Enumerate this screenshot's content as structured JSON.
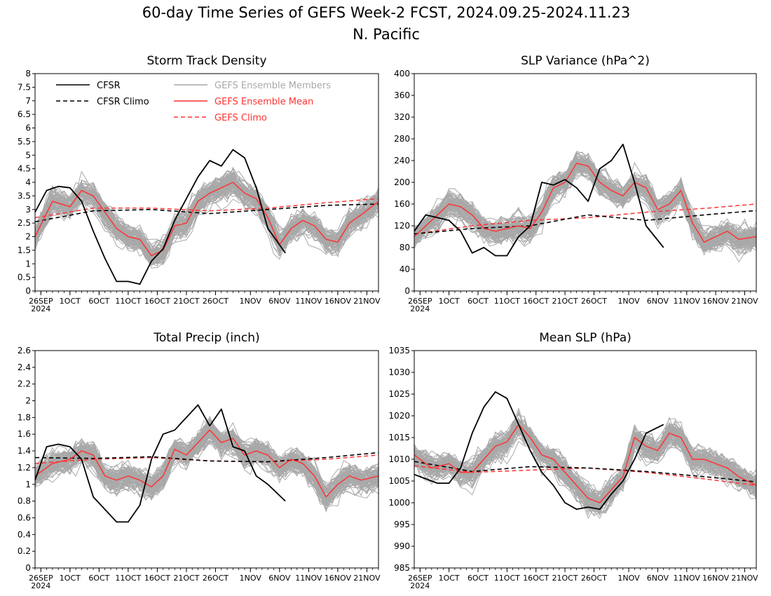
{
  "figure": {
    "title_line1": "60-day Time Series of GEFS Week-2 FCST, 2024.09.25-2024.11.23",
    "title_line2": "N. Pacific"
  },
  "legend": {
    "cfsr": "CFSR",
    "cfsr_climo": "CFSR Climo",
    "members": "GEFS Ensemble Members",
    "ens_mean": "GEFS Ensemble Mean",
    "gefs_climo": "GEFS Climo"
  },
  "colors": {
    "cfsr": "#000000",
    "ens_mean": "#ff3333",
    "members": "#a9a9a9",
    "gefs_climo": "#ff3333"
  },
  "chart_data": [
    {
      "type": "line",
      "title": "Storm Track Density",
      "x": {
        "start": "2024-09-25",
        "end": "2024-11-23",
        "ticks": [
          "26SEP",
          "1OCT",
          "6OCT",
          "11OCT",
          "16OCT",
          "21OCT",
          "26OCT",
          "1NOV",
          "6NOV",
          "11NOV",
          "16NOV",
          "21NOV"
        ],
        "year_label": "2024"
      },
      "ylim": [
        0,
        8
      ],
      "yticks": [
        "0",
        "0.5",
        "1",
        "1.5",
        "2",
        "2.5",
        "3",
        "3.5",
        "4",
        "4.5",
        "5",
        "5.5",
        "6",
        "6.5",
        "7",
        "7.5",
        "8"
      ],
      "ens_member_count": 80,
      "series": [
        {
          "name": "CFSR",
          "x": [
            "2024-09-25",
            "2024-09-27",
            "2024-09-29",
            "2024-10-01",
            "2024-10-03",
            "2024-10-05",
            "2024-10-07",
            "2024-10-09",
            "2024-10-11",
            "2024-10-13",
            "2024-10-15",
            "2024-10-17",
            "2024-10-19",
            "2024-10-21",
            "2024-10-23",
            "2024-10-25",
            "2024-10-27",
            "2024-10-29",
            "2024-10-31",
            "2024-11-02",
            "2024-11-04",
            "2024-11-07"
          ],
          "values": [
            2.9,
            3.7,
            3.85,
            3.8,
            3.3,
            2.2,
            1.2,
            0.35,
            0.35,
            0.25,
            1.1,
            1.55,
            2.6,
            3.4,
            4.2,
            4.8,
            4.6,
            5.2,
            4.9,
            3.8,
            2.3,
            1.4
          ]
        },
        {
          "name": "CFSR Climo",
          "x": [
            "2024-09-25",
            "2024-10-05",
            "2024-10-15",
            "2024-10-25",
            "2024-11-04",
            "2024-11-14",
            "2024-11-23"
          ],
          "values": [
            2.55,
            2.95,
            3.0,
            2.85,
            3.0,
            3.15,
            3.2
          ]
        },
        {
          "name": "GEFS Ensemble Mean",
          "x": [
            "2024-09-25",
            "2024-09-28",
            "2024-10-01",
            "2024-10-03",
            "2024-10-05",
            "2024-10-07",
            "2024-10-09",
            "2024-10-11",
            "2024-10-13",
            "2024-10-15",
            "2024-10-17",
            "2024-10-19",
            "2024-10-21",
            "2024-10-23",
            "2024-10-25",
            "2024-10-27",
            "2024-10-29",
            "2024-10-31",
            "2024-11-02",
            "2024-11-04",
            "2024-11-06",
            "2024-11-08",
            "2024-11-10",
            "2024-11-12",
            "2024-11-14",
            "2024-11-16",
            "2024-11-18",
            "2024-11-20",
            "2024-11-23"
          ],
          "values": [
            2.0,
            3.3,
            3.1,
            3.7,
            3.5,
            2.9,
            2.3,
            2.0,
            1.9,
            1.3,
            1.5,
            2.4,
            2.5,
            3.3,
            3.6,
            3.8,
            4.0,
            3.6,
            3.4,
            2.7,
            1.7,
            2.3,
            2.6,
            2.4,
            1.9,
            1.8,
            2.5,
            2.8,
            3.3
          ]
        },
        {
          "name": "GEFS Climo",
          "x": [
            "2024-09-25",
            "2024-10-05",
            "2024-10-15",
            "2024-10-25",
            "2024-11-04",
            "2024-11-14",
            "2024-11-23"
          ],
          "values": [
            2.7,
            3.05,
            3.05,
            2.95,
            3.05,
            3.25,
            3.4
          ]
        }
      ]
    },
    {
      "type": "line",
      "title": "SLP Variance (hPa^2)",
      "x": {
        "start": "2024-09-25",
        "end": "2024-11-23",
        "ticks": [
          "26SEP",
          "1OCT",
          "6OCT",
          "11OCT",
          "16OCT",
          "21OCT",
          "26OCT",
          "1NOV",
          "6NOV",
          "11NOV",
          "16NOV",
          "21NOV"
        ],
        "year_label": "2024"
      },
      "ylim": [
        0,
        400
      ],
      "yticks": [
        "0",
        "40",
        "80",
        "120",
        "160",
        "200",
        "240",
        "280",
        "320",
        "360",
        "400"
      ],
      "ens_member_count": 80,
      "series": [
        {
          "name": "CFSR",
          "x": [
            "2024-09-25",
            "2024-09-27",
            "2024-09-29",
            "2024-10-01",
            "2024-10-03",
            "2024-10-05",
            "2024-10-07",
            "2024-10-09",
            "2024-10-11",
            "2024-10-13",
            "2024-10-15",
            "2024-10-17",
            "2024-10-19",
            "2024-10-21",
            "2024-10-23",
            "2024-10-25",
            "2024-10-27",
            "2024-10-29",
            "2024-10-31",
            "2024-11-02",
            "2024-11-04",
            "2024-11-07"
          ],
          "values": [
            110,
            140,
            135,
            130,
            110,
            70,
            80,
            65,
            65,
            100,
            120,
            200,
            195,
            205,
            190,
            165,
            225,
            240,
            270,
            200,
            120,
            80
          ]
        },
        {
          "name": "CFSR Climo",
          "x": [
            "2024-09-25",
            "2024-10-05",
            "2024-10-15",
            "2024-10-25",
            "2024-11-04",
            "2024-11-14",
            "2024-11-23"
          ],
          "values": [
            105,
            115,
            120,
            140,
            130,
            140,
            148
          ]
        },
        {
          "name": "GEFS Ensemble Mean",
          "x": [
            "2024-09-25",
            "2024-09-28",
            "2024-10-01",
            "2024-10-03",
            "2024-10-05",
            "2024-10-07",
            "2024-10-09",
            "2024-10-11",
            "2024-10-13",
            "2024-10-15",
            "2024-10-17",
            "2024-10-19",
            "2024-10-21",
            "2024-10-23",
            "2024-10-25",
            "2024-10-27",
            "2024-10-29",
            "2024-10-31",
            "2024-11-02",
            "2024-11-04",
            "2024-11-06",
            "2024-11-08",
            "2024-11-10",
            "2024-11-12",
            "2024-11-14",
            "2024-11-16",
            "2024-11-18",
            "2024-11-20",
            "2024-11-23"
          ],
          "values": [
            100,
            130,
            160,
            155,
            140,
            115,
            110,
            115,
            120,
            115,
            145,
            190,
            200,
            235,
            230,
            200,
            185,
            175,
            200,
            190,
            150,
            160,
            185,
            125,
            90,
            100,
            110,
            95,
            100
          ]
        },
        {
          "name": "GEFS Climo",
          "x": [
            "2024-09-25",
            "2024-10-05",
            "2024-10-15",
            "2024-10-25",
            "2024-11-04",
            "2024-11-14",
            "2024-11-23"
          ],
          "values": [
            105,
            120,
            130,
            135,
            145,
            152,
            160
          ]
        }
      ]
    },
    {
      "type": "line",
      "title": "Total Precip (inch)",
      "x": {
        "start": "2024-09-25",
        "end": "2024-11-23",
        "ticks": [
          "26SEP",
          "1OCT",
          "6OCT",
          "11OCT",
          "16OCT",
          "21OCT",
          "26OCT",
          "1NOV",
          "6NOV",
          "11NOV",
          "16NOV",
          "21NOV"
        ],
        "year_label": "2024"
      },
      "ylim": [
        0,
        2.6
      ],
      "yticks": [
        "0",
        "0.2",
        "0.4",
        "0.6",
        "0.8",
        "1",
        "1.2",
        "1.4",
        "1.6",
        "1.8",
        "2",
        "2.2",
        "2.4",
        "2.6"
      ],
      "ens_member_count": 80,
      "series": [
        {
          "name": "CFSR",
          "x": [
            "2024-09-25",
            "2024-09-27",
            "2024-09-29",
            "2024-10-01",
            "2024-10-03",
            "2024-10-05",
            "2024-10-07",
            "2024-10-09",
            "2024-10-11",
            "2024-10-13",
            "2024-10-15",
            "2024-10-17",
            "2024-10-19",
            "2024-10-21",
            "2024-10-23",
            "2024-10-25",
            "2024-10-27",
            "2024-10-29",
            "2024-10-31",
            "2024-11-02",
            "2024-11-04",
            "2024-11-07"
          ],
          "values": [
            1.05,
            1.45,
            1.48,
            1.45,
            1.3,
            0.85,
            0.7,
            0.55,
            0.55,
            0.75,
            1.3,
            1.6,
            1.65,
            1.8,
            1.95,
            1.7,
            1.9,
            1.45,
            1.4,
            1.1,
            1.0,
            0.8
          ]
        },
        {
          "name": "CFSR Climo",
          "x": [
            "2024-09-25",
            "2024-10-05",
            "2024-10-15",
            "2024-10-25",
            "2024-11-04",
            "2024-11-14",
            "2024-11-23"
          ],
          "values": [
            1.32,
            1.31,
            1.33,
            1.28,
            1.27,
            1.32,
            1.38
          ]
        },
        {
          "name": "GEFS Ensemble Mean",
          "x": [
            "2024-09-25",
            "2024-09-28",
            "2024-10-01",
            "2024-10-03",
            "2024-10-05",
            "2024-10-07",
            "2024-10-09",
            "2024-10-11",
            "2024-10-13",
            "2024-10-15",
            "2024-10-17",
            "2024-10-19",
            "2024-10-21",
            "2024-10-23",
            "2024-10-25",
            "2024-10-27",
            "2024-10-29",
            "2024-10-31",
            "2024-11-02",
            "2024-11-04",
            "2024-11-06",
            "2024-11-08",
            "2024-11-10",
            "2024-11-12",
            "2024-11-14",
            "2024-11-16",
            "2024-11-18",
            "2024-11-20",
            "2024-11-23"
          ],
          "values": [
            1.1,
            1.25,
            1.3,
            1.4,
            1.35,
            1.1,
            1.05,
            1.1,
            1.05,
            0.97,
            1.1,
            1.42,
            1.35,
            1.5,
            1.65,
            1.5,
            1.55,
            1.35,
            1.4,
            1.35,
            1.2,
            1.3,
            1.25,
            1.1,
            0.85,
            1.0,
            1.1,
            1.05,
            1.1
          ]
        },
        {
          "name": "GEFS Climo",
          "x": [
            "2024-09-25",
            "2024-10-05",
            "2024-10-15",
            "2024-10-25",
            "2024-11-04",
            "2024-11-14",
            "2024-11-23"
          ],
          "values": [
            1.25,
            1.3,
            1.32,
            1.28,
            1.27,
            1.3,
            1.35
          ]
        }
      ]
    },
    {
      "type": "line",
      "title": "Mean SLP (hPa)",
      "x": {
        "start": "2024-09-25",
        "end": "2024-11-23",
        "ticks": [
          "26SEP",
          "1OCT",
          "6OCT",
          "11OCT",
          "16OCT",
          "21OCT",
          "26OCT",
          "1NOV",
          "6NOV",
          "11NOV",
          "16NOV",
          "21NOV"
        ],
        "year_label": "2024"
      },
      "ylim": [
        985,
        1035
      ],
      "yticks": [
        "985",
        "990",
        "995",
        "1000",
        "1005",
        "1010",
        "1015",
        "1020",
        "1025",
        "1030",
        "1035"
      ],
      "ens_member_count": 80,
      "series": [
        {
          "name": "CFSR",
          "x": [
            "2024-09-25",
            "2024-09-27",
            "2024-09-29",
            "2024-10-01",
            "2024-10-03",
            "2024-10-05",
            "2024-10-07",
            "2024-10-09",
            "2024-10-11",
            "2024-10-13",
            "2024-10-15",
            "2024-10-17",
            "2024-10-19",
            "2024-10-21",
            "2024-10-23",
            "2024-10-25",
            "2024-10-27",
            "2024-10-29",
            "2024-10-31",
            "2024-11-02",
            "2024-11-04",
            "2024-11-07"
          ],
          "values": [
            1006.5,
            1005.5,
            1004.5,
            1004.5,
            1008,
            1016,
            1022,
            1025.5,
            1024,
            1018,
            1012,
            1007,
            1004,
            1000,
            998.5,
            999,
            998.5,
            1002,
            1005,
            1010,
            1016,
            1018
          ]
        },
        {
          "name": "CFSR Climo",
          "x": [
            "2024-09-25",
            "2024-10-05",
            "2024-10-15",
            "2024-10-25",
            "2024-11-04",
            "2024-11-14",
            "2024-11-23"
          ],
          "values": [
            1009.5,
            1007.2,
            1008.3,
            1008,
            1007.2,
            1006,
            1004.8
          ]
        },
        {
          "name": "GEFS Ensemble Mean",
          "x": [
            "2024-09-25",
            "2024-09-28",
            "2024-10-01",
            "2024-10-03",
            "2024-10-05",
            "2024-10-07",
            "2024-10-09",
            "2024-10-11",
            "2024-10-13",
            "2024-10-15",
            "2024-10-17",
            "2024-10-19",
            "2024-10-21",
            "2024-10-23",
            "2024-10-25",
            "2024-10-27",
            "2024-10-29",
            "2024-10-31",
            "2024-11-02",
            "2024-11-04",
            "2024-11-06",
            "2024-11-08",
            "2024-11-10",
            "2024-11-12",
            "2024-11-14",
            "2024-11-16",
            "2024-11-18",
            "2024-11-20",
            "2024-11-23"
          ],
          "values": [
            1011,
            1008,
            1009,
            1007,
            1007,
            1010,
            1013,
            1014,
            1018,
            1015,
            1011,
            1010,
            1007,
            1004,
            1001,
            1000,
            1003,
            1006,
            1015,
            1013,
            1012,
            1016,
            1015,
            1010,
            1010,
            1009,
            1008,
            1006,
            1004
          ]
        },
        {
          "name": "GEFS Climo",
          "x": [
            "2024-09-25",
            "2024-10-05",
            "2024-10-15",
            "2024-10-25",
            "2024-11-04",
            "2024-11-14",
            "2024-11-23"
          ],
          "values": [
            1008.5,
            1007,
            1007.5,
            1008,
            1007,
            1005.5,
            1004
          ]
        }
      ]
    }
  ]
}
